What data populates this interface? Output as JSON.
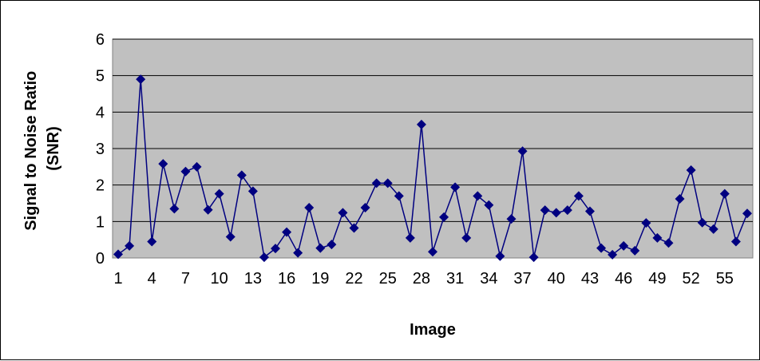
{
  "chart_data": {
    "type": "line",
    "title": "",
    "xlabel": "Image",
    "ylabel": "Signal to Noise Ratio (SNR)",
    "ylabel_lines": [
      "Signal to Noise Ratio",
      "(SNR)"
    ],
    "ylim": [
      0,
      6
    ],
    "yticks": [
      0,
      1,
      2,
      3,
      4,
      5,
      6
    ],
    "grid": true,
    "legend": "none",
    "plot_background": "#c0c0c0",
    "series_color": "#000080",
    "x": [
      1,
      2,
      3,
      4,
      5,
      6,
      7,
      8,
      9,
      10,
      11,
      12,
      13,
      14,
      15,
      16,
      17,
      18,
      19,
      20,
      21,
      22,
      23,
      24,
      25,
      26,
      27,
      28,
      29,
      30,
      31,
      32,
      33,
      34,
      35,
      36,
      37,
      38,
      39,
      40,
      41,
      42,
      43,
      44,
      45,
      46,
      47,
      48,
      49,
      50,
      51,
      52,
      53,
      54,
      55,
      56,
      57
    ],
    "xtick_labels": [
      "1",
      "4",
      "7",
      "10",
      "13",
      "16",
      "19",
      "22",
      "25",
      "28",
      "31",
      "34",
      "37",
      "40",
      "43",
      "46",
      "49",
      "52",
      "55"
    ],
    "series": [
      {
        "values": [
          0.1,
          0.33,
          4.9,
          0.45,
          2.58,
          1.35,
          2.37,
          2.5,
          1.32,
          1.76,
          0.58,
          2.27,
          1.83,
          0.02,
          0.26,
          0.71,
          0.14,
          1.38,
          0.27,
          0.37,
          1.24,
          0.82,
          1.38,
          2.05,
          2.05,
          1.7,
          0.55,
          3.66,
          0.17,
          1.12,
          1.94,
          0.55,
          1.7,
          1.45,
          0.05,
          1.07,
          2.93,
          0.02,
          1.31,
          1.24,
          1.31,
          1.7,
          1.28,
          0.27,
          0.09,
          0.33,
          0.2,
          0.96,
          0.55,
          0.41,
          1.62,
          2.41,
          0.97,
          0.79,
          1.76,
          0.45,
          1.22
        ]
      }
    ]
  }
}
